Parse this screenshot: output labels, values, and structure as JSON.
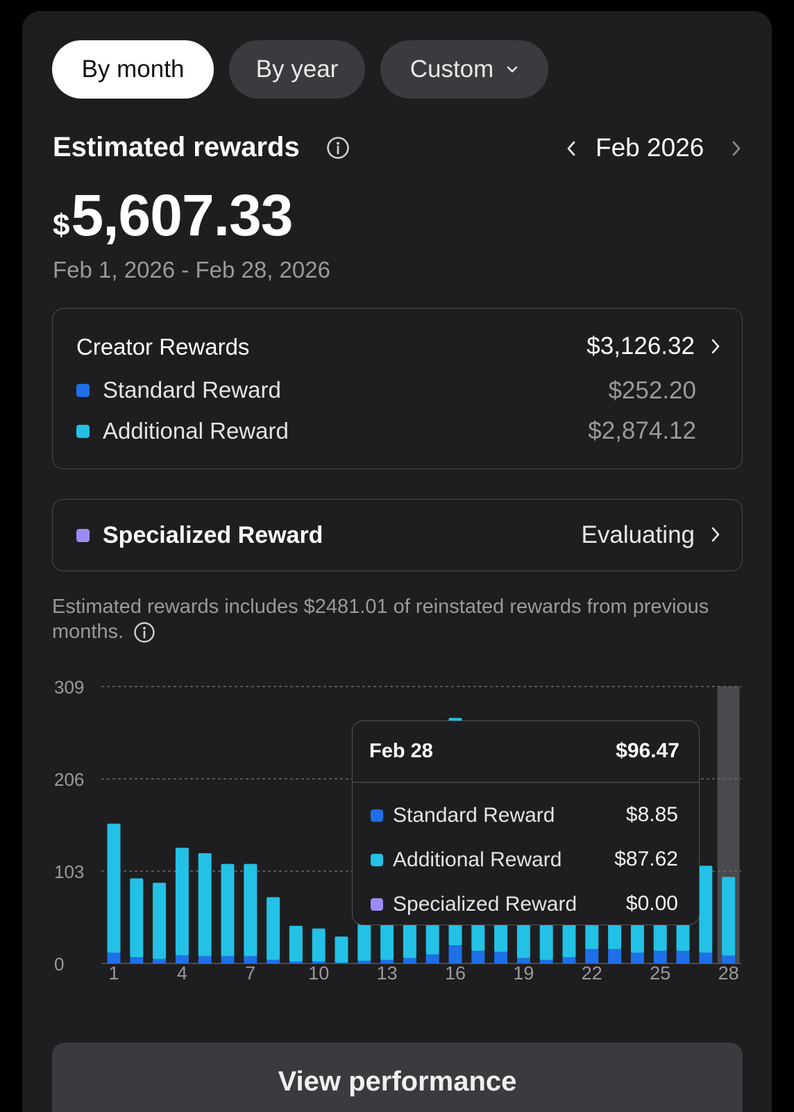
{
  "filters": {
    "by_month": "By month",
    "by_year": "By year",
    "custom": "Custom",
    "selected": "By month"
  },
  "header": {
    "title": "Estimated rewards",
    "period": "Feb 2026"
  },
  "total": {
    "currency": "$",
    "amount": "5,607.33",
    "date_range": "Feb 1, 2026 - Feb 28, 2026"
  },
  "creator_rewards": {
    "label": "Creator Rewards",
    "total": "$3,126.32",
    "standard": {
      "label": "Standard Reward",
      "value": "$252.20"
    },
    "additional": {
      "label": "Additional Reward",
      "value": "$2,874.12"
    }
  },
  "specialized": {
    "label": "Specialized Reward",
    "status": "Evaluating"
  },
  "note": "Estimated rewards includes $2481.01 of reinstated rewards from previous months.",
  "tooltip": {
    "date": "Feb 28",
    "total": "$96.47",
    "standard": {
      "label": "Standard Reward",
      "value": "$8.85"
    },
    "additional": {
      "label": "Additional Reward",
      "value": "$87.62"
    },
    "specialized": {
      "label": "Specialized Reward",
      "value": "$0.00"
    }
  },
  "colors": {
    "standard": "#1f6fe8",
    "additional": "#23c1e6",
    "specialized": "#9b8cf5",
    "selection_band": "#4a4a4e"
  },
  "chart_data": {
    "type": "bar",
    "stacked": true,
    "x": [
      1,
      2,
      3,
      4,
      5,
      6,
      7,
      8,
      9,
      10,
      11,
      12,
      13,
      14,
      15,
      16,
      17,
      18,
      19,
      20,
      21,
      22,
      23,
      24,
      25,
      26,
      27,
      28
    ],
    "x_ticks": [
      1,
      4,
      7,
      10,
      13,
      16,
      19,
      22,
      25,
      28
    ],
    "y_ticks": [
      0,
      103,
      206,
      309
    ],
    "ylim": [
      0,
      309
    ],
    "selected_x": 28,
    "series": [
      {
        "name": "Standard Reward",
        "values": [
          12,
          7,
          5,
          9,
          8,
          8,
          8,
          4,
          2,
          2,
          1,
          3,
          4,
          6,
          10,
          20,
          14,
          13,
          6,
          4,
          7,
          16,
          16,
          12,
          14,
          14,
          12,
          8.85
        ]
      },
      {
        "name": "Additional Reward",
        "values": [
          144,
          88,
          85,
          120,
          115,
          103,
          103,
          70,
          40,
          37,
          29,
          68,
          72,
          70,
          72,
          254,
          72,
          70,
          74,
          76,
          74,
          68,
          70,
          70,
          74,
          72,
          97,
          87.62
        ]
      },
      {
        "name": "Specialized Reward",
        "values": [
          0,
          0,
          0,
          0,
          0,
          0,
          0,
          0,
          0,
          0,
          0,
          0,
          0,
          0,
          0,
          0,
          0,
          0,
          0,
          0,
          0,
          0,
          0,
          0,
          0,
          0,
          0,
          0
        ]
      }
    ]
  },
  "cta": {
    "label": "View performance"
  }
}
